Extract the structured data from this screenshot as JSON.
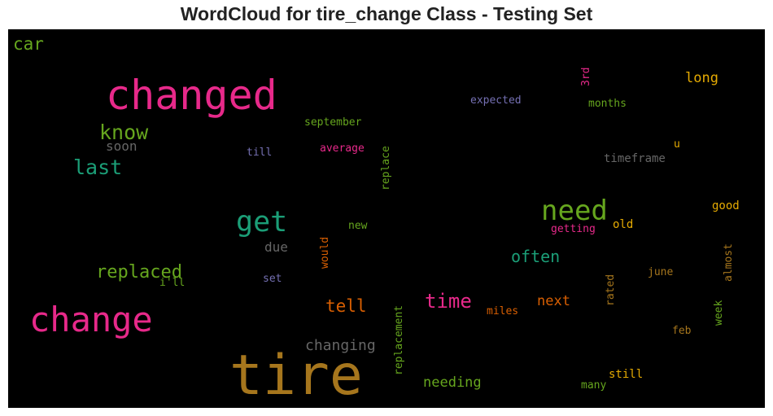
{
  "title": "WordCloud for tire_change Class - Testing Set",
  "colors": {
    "pink": "#e7298a",
    "teal": "#1b9e77",
    "green": "#66a61e",
    "orange": "#d95f02",
    "gold": "#e6ab02",
    "brown": "#a6761d",
    "purple": "#7570b3",
    "gray": "#666666"
  },
  "words": [
    "tire",
    "changed",
    "change",
    "get",
    "need",
    "know",
    "last",
    "replaced",
    "time",
    "tell",
    "often",
    "car",
    "long",
    "changing",
    "needing",
    "next",
    "soon",
    "due",
    "september",
    "average",
    "till",
    "replace",
    "expected",
    "3rd",
    "months",
    "timeframe",
    "u",
    "good",
    "old",
    "getting",
    "new",
    "would",
    "i'll",
    "set",
    "miles",
    "replacement",
    "rated",
    "june",
    "almost",
    "week",
    "feb",
    "still",
    "many"
  ]
}
